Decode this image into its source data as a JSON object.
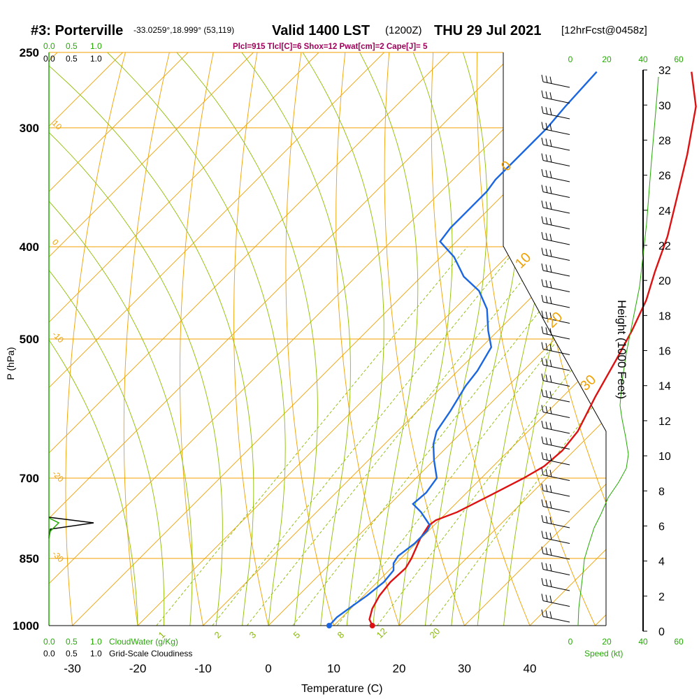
{
  "header": {
    "station": "#3: Porterville",
    "coords": "-33.0259°,18.999° (53,119)",
    "valid": "Valid 1400 LST",
    "zulu": "(1200Z)",
    "date": "THU 29 Jul 2021",
    "fcst": "[12hrFcst@0458z]",
    "params": "Plcl=915 Tlcl[C]=6 Shox=12 Pwat[cm]=2 Cape[J]= 5"
  },
  "chart_data": {
    "type": "line",
    "title": "#3: Porterville",
    "xlabel": "Temperature (C)",
    "ylabel": "P (hPa)",
    "right_ylabel": "Height (1000 Feet)",
    "xlim": [
      -33,
      47
    ],
    "ylim": [
      1000,
      250
    ],
    "x_ticks": [
      -30,
      -20,
      -10,
      0,
      10,
      20,
      30,
      40
    ],
    "p_ticks": [
      250,
      300,
      400,
      500,
      700,
      850,
      1000
    ],
    "height_ticks": [
      0,
      2,
      4,
      6,
      8,
      10,
      12,
      14,
      16,
      18,
      20,
      22,
      24,
      26,
      28,
      30,
      32
    ],
    "isotherm_label_temps": [
      10,
      0,
      -10,
      -20,
      -30
    ],
    "dry_adiabat_labels": [
      "0",
      "10",
      "20",
      "30"
    ],
    "mixing_ratio_labels": [
      "1",
      "2",
      "3",
      "5",
      "8",
      "12",
      "20"
    ],
    "series": [
      {
        "color": "#dd1111",
        "points": [
          [
            15.9,
            1000
          ],
          [
            14.5,
            985
          ],
          [
            13.3,
            960
          ],
          [
            12.4,
            930
          ],
          [
            12.0,
            900
          ],
          [
            12.2,
            870
          ],
          [
            11.6,
            850
          ],
          [
            9.9,
            810
          ],
          [
            9.2,
            785
          ],
          [
            9.5,
            775
          ],
          [
            11.5,
            760
          ],
          [
            14.0,
            730
          ],
          [
            16.5,
            700
          ],
          [
            17.8,
            680
          ],
          [
            18.2,
            655
          ],
          [
            17.6,
            625
          ],
          [
            15.0,
            575
          ],
          [
            12.5,
            525
          ],
          [
            10.5,
            490
          ],
          [
            8.0,
            455
          ],
          [
            5.0,
            425
          ],
          [
            1.5,
            390
          ],
          [
            -3.0,
            355
          ],
          [
            -8.0,
            320
          ],
          [
            -14.0,
            285
          ],
          [
            -20.0,
            262
          ]
        ]
      },
      {
        "color": "#1a66e0",
        "points": [
          [
            9.3,
            1000
          ],
          [
            9.2,
            980
          ],
          [
            9.8,
            955
          ],
          [
            10.5,
            930
          ],
          [
            11.0,
            900
          ],
          [
            10.7,
            875
          ],
          [
            9.6,
            860
          ],
          [
            9.2,
            845
          ],
          [
            9.8,
            820
          ],
          [
            9.8,
            795
          ],
          [
            9.4,
            785
          ],
          [
            6.0,
            760
          ],
          [
            3.5,
            745
          ],
          [
            3.8,
            725
          ],
          [
            3.2,
            700
          ],
          [
            0.0,
            670
          ],
          [
            -2.5,
            645
          ],
          [
            -4.0,
            625
          ],
          [
            -5.0,
            595
          ],
          [
            -6.5,
            560
          ],
          [
            -7.0,
            540
          ],
          [
            -8.5,
            510
          ],
          [
            -11.5,
            490
          ],
          [
            -15.0,
            465
          ],
          [
            -19.0,
            445
          ],
          [
            -23.5,
            430
          ],
          [
            -28.0,
            410
          ],
          [
            -32.5,
            395
          ],
          [
            -33.0,
            382
          ],
          [
            -33.0,
            368
          ],
          [
            -33.0,
            350
          ],
          [
            -33.5,
            340
          ],
          [
            -33.5,
            320
          ],
          [
            -33.5,
            300
          ],
          [
            -34.0,
            285
          ],
          [
            -34.5,
            262
          ]
        ]
      }
    ],
    "surface": {
      "temp": 15.9,
      "dewpoint": 9.3,
      "p": 1000
    },
    "wind_profile_note": "wind barbs along right side",
    "bottom_labels": {
      "cloudwater": "CloudWater (g/Kg)",
      "cloudiness": "Grid-Scale Cloudiness",
      "scale_vals": [
        "0.0",
        "0.5",
        "1.0"
      ],
      "speed_label": "Speed (kt)",
      "speed_ticks": [
        "0",
        "20",
        "40",
        "60"
      ]
    }
  },
  "colors": {
    "isobar": "#f0a000",
    "isotherm": "#f0a000",
    "dry_adiabat": "#8fbf00",
    "mixing_ratio": "#88bb00",
    "temperature": "#dd1111",
    "dewpoint": "#1a66e0",
    "green_text": "#22aa00",
    "param_text": "#a0005a"
  }
}
